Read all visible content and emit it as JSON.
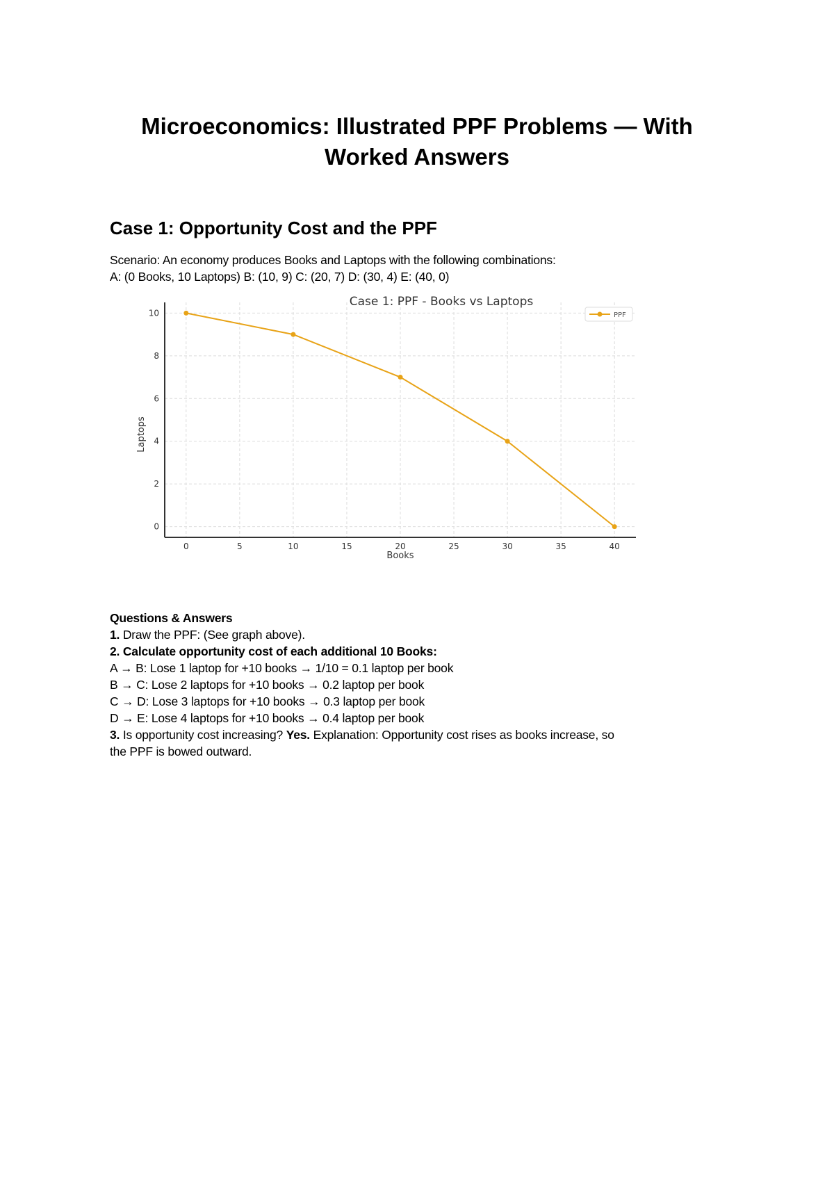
{
  "document": {
    "title_line1": "Microeconomics: Illustrated PPF Problems — With",
    "title_line2": "Worked Answers",
    "case1": {
      "heading": "Case 1: Opportunity Cost and the PPF",
      "scenario_line1": "Scenario: An economy produces Books and Laptops with the following combinations:",
      "scenario_line2": "A: (0 Books, 10 Laptops) B: (10, 9) C: (20, 7) D: (30, 4) E: (40, 0)",
      "qa_heading": "Questions & Answers",
      "q1_num": "1.",
      "q1_text": " Draw the PPF: (See graph above).",
      "q2_text": "2. Calculate opportunity cost of each additional 10 Books:",
      "q2_answers": [
        "A → B: Lose 1 laptop for +10 books → 1/10 = 0.1 laptop per book",
        "B → C: Lose 2 laptops for +10 books → 0.2 laptop per book",
        "C → D: Lose 3 laptops for +10 books → 0.3 laptop per book",
        "D → E: Lose 4 laptops for +10 books → 0.4 laptop per book"
      ],
      "q3_num": "3.",
      "q3_text": " Is opportunity cost increasing? ",
      "q3_answer": "Yes.",
      "q3_explanation_line1": " Explanation: Opportunity cost rises as books increase, so",
      "q3_explanation_line2": "the PPF is bowed outward."
    }
  },
  "chart_data": {
    "type": "line",
    "title": "Case 1: PPF - Books vs Laptops",
    "xlabel": "Books",
    "ylabel": "Laptops",
    "series": [
      {
        "name": "PPF",
        "color": "#E8A317",
        "marker": "circle",
        "x": [
          0,
          10,
          20,
          30,
          40
        ],
        "y": [
          10,
          9,
          7,
          4,
          0
        ]
      }
    ],
    "x_ticks": [
      "0",
      "5",
      "10",
      "15",
      "20",
      "25",
      "30",
      "35",
      "40"
    ],
    "y_ticks": [
      "0",
      "2",
      "4",
      "6",
      "8",
      "10"
    ],
    "xlim": [
      -2,
      42
    ],
    "ylim": [
      -0.5,
      10.5
    ],
    "grid": true,
    "legend_position": "upper right"
  }
}
